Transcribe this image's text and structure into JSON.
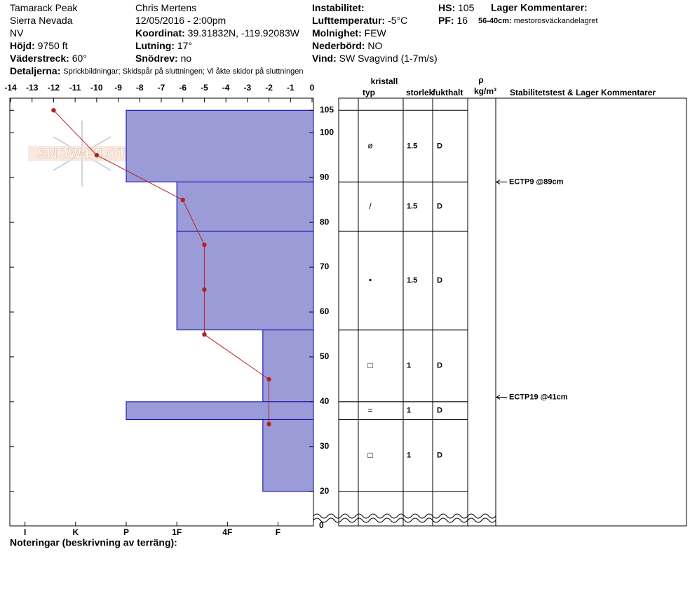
{
  "header": {
    "col1": [
      {
        "value": "Tamarack Peak"
      },
      {
        "value": "Sierra Nevada"
      },
      {
        "value": "NV"
      },
      {
        "label": "Höjd:",
        "value": "9750 ft"
      },
      {
        "label": "Väderstreck:",
        "value": "60°"
      }
    ],
    "details": {
      "label": "Detaljerna:",
      "value": "Sprickbildningar;  Skidspår på sluttningen;  Vi åkte skidor på sluttningen"
    },
    "col2": [
      {
        "value": "Chris Mertens"
      },
      {
        "value": "12/05/2016 - 2:00pm"
      },
      {
        "label": "Koordinat:",
        "value": "39.31832N, -119.92083W"
      },
      {
        "label": "Lutning:",
        "value": "17°"
      },
      {
        "label": "Snödrev:",
        "value": "no"
      }
    ],
    "col3": [
      {
        "label": "Instabilitet:",
        "value": ""
      },
      {
        "label": "Lufttemperatur:",
        "value": "-5°C"
      },
      {
        "label": "Molnighet:",
        "value": "FEW"
      },
      {
        "label": "Nederbörd:",
        "value": "NO"
      },
      {
        "label": "Vind:",
        "value": "SW Svagvind (1-7m/s)"
      }
    ],
    "col4": [
      {
        "label": "HS:",
        "value": "105"
      },
      {
        "label": "PF:",
        "value": "16"
      }
    ],
    "layer_comments": {
      "title": "Lager Kommentarer:",
      "label": "56-40cm:",
      "value": "mestorosväckandelagret"
    }
  },
  "logo": "SNOW PILOT",
  "notes_label": "Noteringar (beskrivning av terräng):",
  "chart_data": {
    "type": "snowprofile",
    "xlim": [
      -14,
      0
    ],
    "xticks": [
      -14,
      -13,
      -12,
      -11,
      -10,
      -9,
      -8,
      -7,
      -6,
      -5,
      -4,
      -3,
      -2,
      -1,
      0
    ],
    "ylim": [
      12.3,
      107.7
    ],
    "yticks": [
      20,
      30,
      40,
      50,
      60,
      70,
      80,
      90,
      100,
      105
    ],
    "axis_break_label": "0",
    "hlim": [
      6.3,
      0.3
    ],
    "hticks": [
      {
        "value": 6,
        "label": "I"
      },
      {
        "value": 5,
        "label": "K"
      },
      {
        "value": 4,
        "label": "P"
      },
      {
        "value": 3,
        "label": "1F"
      },
      {
        "value": 2,
        "label": "4F"
      },
      {
        "value": 1,
        "label": "F"
      }
    ],
    "layer_color": "#9b9bd8",
    "layers": [
      {
        "top": 105,
        "bottom": 89,
        "hardness": 4,
        "grain": "ø",
        "size": 1.5,
        "moisture": "D"
      },
      {
        "top": 89,
        "bottom": 78,
        "hardness": 3,
        "grain": "/",
        "size": 1.5,
        "moisture": "D"
      },
      {
        "top": 78,
        "bottom": 56,
        "hardness": 3,
        "grain": "•",
        "size": 1.5,
        "moisture": "D"
      },
      {
        "top": 56,
        "bottom": 40,
        "hardness": 1.3,
        "grain": "□",
        "size": 1,
        "moisture": "D"
      },
      {
        "top": 40,
        "bottom": 36,
        "hardness": 4,
        "grain": "=",
        "size": 1,
        "moisture": "D"
      },
      {
        "top": 36,
        "bottom": 20,
        "hardness": 1.3,
        "grain": "□",
        "size": 1,
        "moisture": "D"
      }
    ],
    "temperature": {
      "color": "#b22222",
      "depth": [
        105,
        95,
        85,
        75,
        65,
        55,
        45,
        35
      ],
      "values": [
        -12,
        -10,
        -6,
        -5,
        -5,
        -5,
        -2,
        -2
      ]
    },
    "columns": {
      "crystal": "kristall",
      "type": "typ",
      "size": "storlek",
      "moisture": "fukthalt",
      "density_symbol": "ρ",
      "density_unit": "kg/m³",
      "stability": "Stabilitetstest & Lager Kommentarer"
    },
    "tests": [
      {
        "depth": 89,
        "label": "ECTP9 @89cm"
      },
      {
        "depth": 41,
        "label": "ECTP19 @41cm"
      }
    ]
  }
}
